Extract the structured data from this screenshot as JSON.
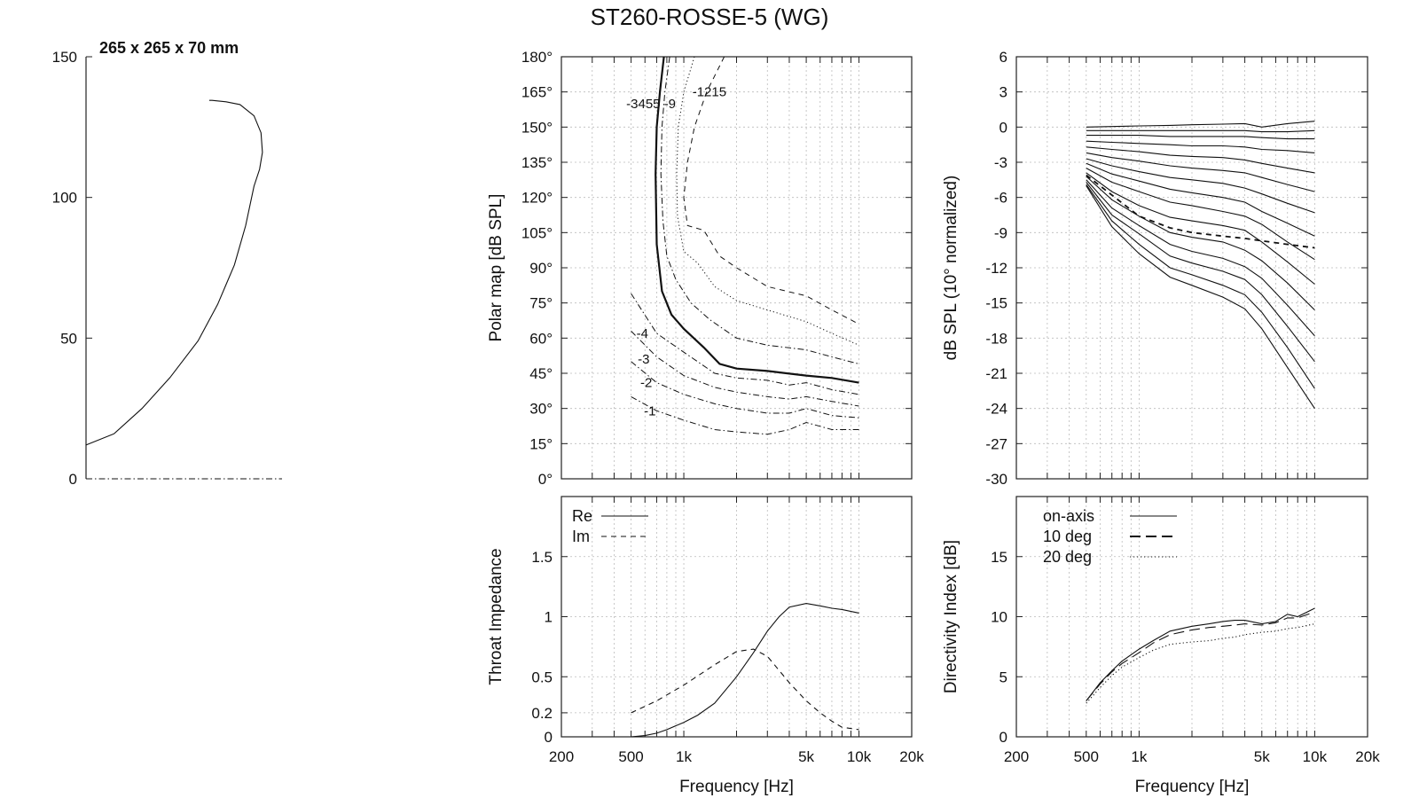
{
  "title": "ST260-ROSSE-5 (WG)",
  "chart_data": [
    {
      "id": "profile",
      "type": "line",
      "title": "265 x 265 x 70 mm",
      "xlabel": "",
      "ylabel": "",
      "xlim": [
        0,
        70
      ],
      "ylim": [
        0,
        150
      ],
      "yticks": [
        0,
        50,
        100,
        150
      ],
      "grid": false,
      "series": [
        {
          "line": "solid",
          "x": [
            0,
            10,
            20,
            30,
            40,
            47,
            53,
            57,
            60,
            62,
            63,
            62.5,
            60,
            55,
            50,
            45,
            44
          ],
          "y": [
            12,
            16,
            25,
            36,
            49,
            62,
            76,
            90,
            104,
            110,
            116,
            123,
            129,
            133,
            134,
            134.5,
            134.5
          ]
        },
        {
          "line": "dash-dot",
          "x": [
            0,
            70
          ],
          "y": [
            0,
            0
          ]
        }
      ]
    },
    {
      "id": "polar",
      "type": "line",
      "xlabel": "",
      "ylabel": "Polar map [dB SPL]",
      "xscale": "log",
      "xlim": [
        200,
        20000
      ],
      "ylim": [
        0,
        180
      ],
      "yticks": [
        "0°",
        "15°",
        "30°",
        "45°",
        "60°",
        "75°",
        "90°",
        "105°",
        "120°",
        "135°",
        "150°",
        "165°",
        "180°"
      ],
      "ytick_values": [
        0,
        15,
        30,
        45,
        60,
        75,
        90,
        105,
        120,
        135,
        150,
        165,
        180
      ],
      "grid": true,
      "series": [
        {
          "label": "-1",
          "line": "dash-dot",
          "width": 1,
          "x": [
            500,
            700,
            1000,
            1500,
            2000,
            3000,
            4000,
            5000,
            7000,
            10000
          ],
          "y": [
            35,
            29,
            25,
            21,
            20,
            19,
            21,
            24,
            21,
            21
          ]
        },
        {
          "label": "-2",
          "line": "dash-dot",
          "width": 1,
          "x": [
            500,
            700,
            1000,
            1500,
            2000,
            3000,
            4000,
            5000,
            7000,
            10000
          ],
          "y": [
            50,
            41,
            36,
            32,
            30,
            28,
            28,
            30,
            27,
            26
          ]
        },
        {
          "label": "-3",
          "line": "dash-dot",
          "width": 1,
          "x": [
            500,
            700,
            1000,
            1500,
            2000,
            3000,
            4000,
            5000,
            7000,
            10000
          ],
          "y": [
            63,
            52,
            44,
            39,
            37,
            35,
            34,
            35,
            33,
            31
          ]
        },
        {
          "label": "-4",
          "line": "dash-dot",
          "width": 1,
          "x": [
            500,
            700,
            1000,
            1500,
            2000,
            3000,
            4000,
            5000,
            7000,
            10000
          ],
          "y": [
            79,
            62,
            54,
            45,
            43,
            42,
            40,
            41,
            38,
            36
          ]
        },
        {
          "label": "-6",
          "line": "solid",
          "width": 2.2,
          "x": [
            770,
            730,
            700,
            690,
            700,
            750,
            850,
            1000,
            1300,
            1600,
            2000,
            3000,
            5000,
            7000,
            10000
          ],
          "y": [
            180,
            165,
            150,
            130,
            100,
            80,
            70,
            64,
            56,
            49,
            47,
            46,
            44,
            43,
            41
          ]
        },
        {
          "label": "-9",
          "line": "dash-dot",
          "width": 1,
          "x": [
            830,
            780,
            750,
            740,
            760,
            800,
            900,
            1100,
            1400,
            2000,
            3000,
            5000,
            7000,
            10000
          ],
          "y": [
            180,
            165,
            150,
            130,
            110,
            95,
            85,
            75,
            68,
            60,
            57,
            55,
            52,
            49
          ]
        },
        {
          "label": "-12",
          "line": "dotted",
          "width": 1,
          "x": [
            1150,
            1000,
            930,
            910,
            920,
            1000,
            1200,
            1500,
            2000,
            3000,
            5000,
            7000,
            10000
          ],
          "y": [
            180,
            165,
            150,
            130,
            112,
            97,
            92,
            82,
            76,
            72,
            67,
            62,
            57
          ]
        },
        {
          "label": "-15",
          "line": "dashed",
          "width": 1,
          "x": [
            1700,
            1350,
            1150,
            1050,
            1000,
            1050,
            1300,
            1600,
            2000,
            3000,
            5000,
            7000,
            10000
          ],
          "y": [
            180,
            165,
            150,
            135,
            120,
            108,
            106,
            95,
            90,
            82,
            78,
            72,
            66
          ]
        }
      ],
      "annotations": [
        {
          "text": "-3455 -9",
          "x": 650,
          "y": 160
        },
        {
          "text": "-1215",
          "x": 1400,
          "y": 165
        },
        {
          "text": "-4",
          "x": 580,
          "y": 62
        },
        {
          "text": "-3",
          "x": 590,
          "y": 51
        },
        {
          "text": "-2",
          "x": 610,
          "y": 41
        },
        {
          "text": "-1",
          "x": 640,
          "y": 29
        }
      ]
    },
    {
      "id": "normalized",
      "type": "line",
      "xlabel": "",
      "ylabel": "dB SPL (10° normalized)",
      "xscale": "log",
      "xlim": [
        200,
        20000
      ],
      "ylim": [
        -30,
        6
      ],
      "yticks": [
        6,
        3,
        0,
        -3,
        -6,
        -9,
        -12,
        -15,
        -18,
        -21,
        -24,
        -27,
        -30
      ],
      "grid": true,
      "x": [
        500,
        700,
        1000,
        1500,
        2000,
        3000,
        4000,
        5000,
        7000,
        10000
      ],
      "series": [
        {
          "line": "solid",
          "values": [
            0.0,
            0.05,
            0.1,
            0.15,
            0.2,
            0.25,
            0.3,
            0.0,
            0.3,
            0.5
          ]
        },
        {
          "line": "solid",
          "values": [
            -0.3,
            -0.3,
            -0.3,
            -0.3,
            -0.3,
            -0.3,
            -0.3,
            -0.4,
            -0.4,
            -0.3
          ]
        },
        {
          "line": "solid",
          "values": [
            -0.7,
            -0.7,
            -0.7,
            -0.8,
            -0.8,
            -0.8,
            -0.8,
            -0.9,
            -1.0,
            -1.0
          ]
        },
        {
          "line": "solid",
          "values": [
            -1.2,
            -1.3,
            -1.4,
            -1.5,
            -1.6,
            -1.6,
            -1.7,
            -1.9,
            -2.0,
            -2.2
          ]
        },
        {
          "line": "solid",
          "values": [
            -1.7,
            -1.9,
            -2.1,
            -2.4,
            -2.5,
            -2.6,
            -2.8,
            -3.1,
            -3.5,
            -3.9
          ]
        },
        {
          "line": "solid",
          "values": [
            -2.2,
            -2.6,
            -2.9,
            -3.3,
            -3.5,
            -3.7,
            -3.9,
            -4.3,
            -4.9,
            -5.5
          ]
        },
        {
          "line": "solid",
          "values": [
            -2.7,
            -3.3,
            -3.8,
            -4.3,
            -4.5,
            -4.8,
            -5.2,
            -5.7,
            -6.5,
            -7.3
          ]
        },
        {
          "line": "solid",
          "values": [
            -3.1,
            -4.0,
            -4.6,
            -5.3,
            -5.6,
            -6.0,
            -6.4,
            -7.2,
            -8.2,
            -9.3
          ]
        },
        {
          "line": "solid",
          "values": [
            -3.5,
            -4.7,
            -5.5,
            -6.4,
            -6.7,
            -7.2,
            -7.6,
            -8.3,
            -9.8,
            -11.3
          ]
        },
        {
          "line": "solid",
          "values": [
            -3.9,
            -5.5,
            -6.7,
            -7.7,
            -8.0,
            -8.4,
            -8.8,
            -9.8,
            -11.5,
            -13.4
          ]
        },
        {
          "line": "solid",
          "values": [
            -4.2,
            -6.2,
            -7.6,
            -9.0,
            -9.4,
            -9.8,
            -10.5,
            -11.4,
            -13.3,
            -15.6
          ]
        },
        {
          "line": "solid",
          "values": [
            -4.5,
            -6.9,
            -8.4,
            -10.0,
            -10.6,
            -11.2,
            -11.9,
            -12.9,
            -15.2,
            -17.8
          ]
        },
        {
          "line": "solid",
          "values": [
            -4.7,
            -7.5,
            -9.1,
            -11.0,
            -11.6,
            -12.3,
            -13.0,
            -14.3,
            -17.0,
            -20.0
          ]
        },
        {
          "line": "solid",
          "values": [
            -4.9,
            -8.0,
            -10.0,
            -12.0,
            -12.6,
            -13.5,
            -14.3,
            -15.8,
            -18.8,
            -22.3
          ]
        },
        {
          "line": "solid",
          "values": [
            -5.0,
            -8.5,
            -10.8,
            -12.8,
            -13.5,
            -14.5,
            -15.5,
            -17.2,
            -20.5,
            -24.0
          ]
        },
        {
          "line": "dashed",
          "width": 1.8,
          "values": [
            -4.1,
            -5.8,
            -7.6,
            -8.6,
            -9.0,
            -9.3,
            -9.5,
            -9.7,
            -10.0,
            -10.3
          ]
        }
      ]
    },
    {
      "id": "impedance",
      "type": "line",
      "xlabel": "Frequency [Hz]",
      "ylabel": "Throat Impedance",
      "xscale": "log",
      "xlim": [
        200,
        20000
      ],
      "ylim": [
        0,
        2
      ],
      "xticks": [
        "200",
        "500",
        "1k",
        "5k",
        "10k",
        "20k"
      ],
      "xtick_values": [
        200,
        500,
        1000,
        5000,
        10000,
        20000
      ],
      "yticks": [
        "0",
        "0.2",
        "0.5",
        "1",
        "1.5"
      ],
      "ytick_values": [
        0,
        0.2,
        0.5,
        1,
        1.5
      ],
      "grid": true,
      "legend": "top-left",
      "series": [
        {
          "name": "Re",
          "line": "solid",
          "x": [
            500,
            600,
            700,
            800,
            1000,
            1200,
            1500,
            2000,
            2500,
            3000,
            3500,
            4000,
            5000,
            6000,
            7000,
            8000,
            10000
          ],
          "y": [
            0.0,
            0.01,
            0.03,
            0.06,
            0.12,
            0.18,
            0.28,
            0.5,
            0.7,
            0.88,
            1.0,
            1.08,
            1.11,
            1.09,
            1.07,
            1.06,
            1.03
          ]
        },
        {
          "name": "Im",
          "line": "dashed",
          "x": [
            500,
            700,
            1000,
            1500,
            2000,
            2500,
            3000,
            4000,
            5000,
            6000,
            7000,
            8000,
            10000
          ],
          "y": [
            0.2,
            0.3,
            0.43,
            0.6,
            0.71,
            0.73,
            0.67,
            0.45,
            0.3,
            0.2,
            0.13,
            0.08,
            0.06
          ]
        }
      ]
    },
    {
      "id": "directivity",
      "type": "line",
      "xlabel": "Frequency [Hz]",
      "ylabel": "Directivity Index [dB]",
      "xscale": "log",
      "xlim": [
        200,
        20000
      ],
      "ylim": [
        0,
        20
      ],
      "xticks": [
        "200",
        "500",
        "1k",
        "5k",
        "10k",
        "20k"
      ],
      "xtick_values": [
        200,
        500,
        1000,
        5000,
        10000,
        20000
      ],
      "yticks": [
        0,
        5,
        10,
        15
      ],
      "grid": true,
      "legend": "top-left",
      "x": [
        500,
        600,
        700,
        800,
        1000,
        1200,
        1500,
        2000,
        2500,
        3000,
        3500,
        4000,
        5000,
        6000,
        7000,
        8000,
        10000
      ],
      "series": [
        {
          "name": "on-axis",
          "line": "solid",
          "values": [
            3.0,
            4.5,
            5.5,
            6.3,
            7.3,
            8.0,
            8.8,
            9.2,
            9.4,
            9.6,
            9.7,
            9.7,
            9.4,
            9.6,
            10.2,
            10.0,
            10.7
          ]
        },
        {
          "name": "10 deg",
          "line": "longdash",
          "values": [
            3.0,
            4.4,
            5.4,
            6.1,
            7.0,
            7.8,
            8.5,
            8.9,
            9.1,
            9.2,
            9.3,
            9.4,
            9.3,
            9.5,
            9.9,
            9.9,
            10.4
          ]
        },
        {
          "name": "20 deg",
          "line": "dotted",
          "values": [
            2.8,
            4.1,
            5.1,
            5.8,
            6.6,
            7.2,
            7.7,
            7.9,
            8.0,
            8.2,
            8.3,
            8.5,
            8.7,
            8.8,
            9.0,
            9.1,
            9.4
          ]
        }
      ]
    }
  ]
}
